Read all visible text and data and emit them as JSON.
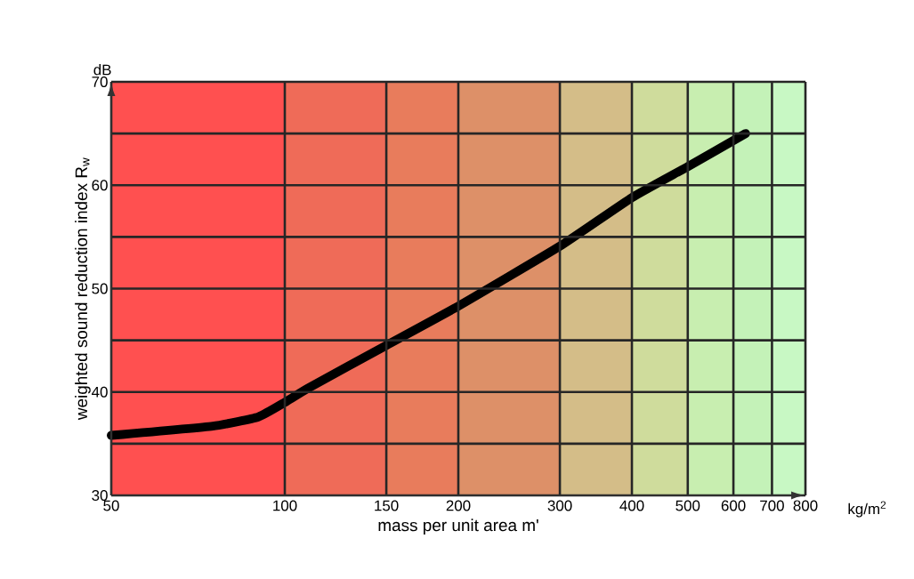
{
  "chart_data": {
    "type": "line",
    "xlabel": "mass per unit area m'",
    "ylabel": "weighted sound reduction index R$_{w}$",
    "annotations": [
      "dB",
      "kg/m$^{2}$"
    ],
    "log": "x",
    "x": [
      50,
      75,
      90,
      100,
      110,
      150,
      200,
      300,
      400,
      500,
      630
    ],
    "series": [
      {
        "color": "#000000",
        "values": [
          35.8,
          36.7,
          37.6,
          39.0,
          40.4,
          44.5,
          48.3,
          54.1,
          58.8,
          61.8,
          65.0
        ]
      }
    ],
    "xlim": [
      50,
      800
    ],
    "xticks": [
      50,
      100,
      150,
      200,
      300,
      400,
      500,
      600,
      700,
      800
    ],
    "ylim": [
      30,
      70
    ],
    "yticks": [
      30,
      {
        "value": 35,
        "label": null
      },
      40,
      {
        "value": 45,
        "label": null
      },
      50,
      {
        "value": 55,
        "label": null
      },
      60,
      {
        "value": 65,
        "label": null
      },
      70
    ],
    "grid": true,
    "marker": "none",
    "line_style": "solid",
    "bands": [
      {
        "axis": "x",
        "from": 50,
        "to": 100,
        "color": "#ff5050"
      },
      {
        "axis": "x",
        "from": 100,
        "to": 150,
        "color": "#ef6b58"
      },
      {
        "axis": "x",
        "from": 150,
        "to": 200,
        "color": "#e87c5c"
      },
      {
        "axis": "x",
        "from": 200,
        "to": 300,
        "color": "#dd9068"
      },
      {
        "axis": "x",
        "from": 300,
        "to": 400,
        "color": "#d4bd88"
      },
      {
        "axis": "x",
        "from": 400,
        "to": 500,
        "color": "#cfdc9c"
      },
      {
        "axis": "x",
        "from": 500,
        "to": 600,
        "color": "#c8eeb0"
      },
      {
        "axis": "x",
        "from": 600,
        "to": 700,
        "color": "#c4f2b8"
      },
      {
        "axis": "x",
        "from": 700,
        "to": 800,
        "color": "#c8f8c4"
      }
    ]
  }
}
